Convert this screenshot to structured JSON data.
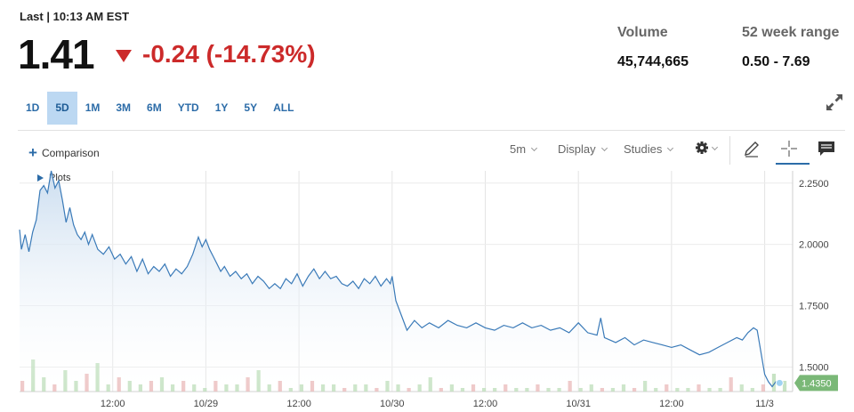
{
  "header": {
    "last_label": "Last | 10:13 AM EST",
    "price": "1.41",
    "change": "-0.24 (-14.73%)",
    "change_color": "#cc2a2a",
    "volume_label": "Volume",
    "volume_value": "45,744,665",
    "range_label": "52 week range",
    "range_value": "0.50 - 7.69"
  },
  "ranges": [
    "1D",
    "5D",
    "1M",
    "3M",
    "6M",
    "YTD",
    "1Y",
    "5Y",
    "ALL"
  ],
  "active_range": "5D",
  "toolbar": {
    "comparison_label": "Comparison",
    "plots_label": "Plots",
    "interval_label": "5m",
    "display_label": "Display",
    "studies_label": "Studies",
    "icons": [
      "gear-icon",
      "pencil-icon",
      "crosshair-icon",
      "comment-icon",
      "expand-icon"
    ]
  },
  "chart_data": {
    "type": "area",
    "ylim": [
      1.4,
      2.3
    ],
    "y_ticks": [
      "2.2500",
      "2.0000",
      "1.7500",
      "1.5000"
    ],
    "y_tick_values": [
      2.25,
      2.0,
      1.75,
      1.5
    ],
    "x_tick_labels": [
      "12:00",
      "10/29",
      "12:00",
      "10/30",
      "12:00",
      "10/31",
      "12:00",
      "11/3"
    ],
    "x_tick_positions": [
      0.5,
      1.0,
      1.5,
      2.0,
      2.5,
      3.0,
      3.5,
      4.0
    ],
    "last_price_tag": "1.4350",
    "line_color": "#3a7ab8",
    "fill_color": "#c9dcef",
    "tag_color": "#7ab877",
    "series": [
      {
        "x": [
          0.0,
          0.01,
          0.03,
          0.05,
          0.07,
          0.09,
          0.11,
          0.13,
          0.15,
          0.17,
          0.19,
          0.21,
          0.23,
          0.25,
          0.27,
          0.29,
          0.31,
          0.33,
          0.35,
          0.37,
          0.39,
          0.42,
          0.45,
          0.48,
          0.51,
          0.54,
          0.57,
          0.6,
          0.63,
          0.66,
          0.69,
          0.72,
          0.75,
          0.78,
          0.81,
          0.84,
          0.87,
          0.9,
          0.93,
          0.96,
          0.98,
          1.0,
          1.02,
          1.04,
          1.06,
          1.08,
          1.1,
          1.13,
          1.16,
          1.19,
          1.22,
          1.25,
          1.28,
          1.31,
          1.34,
          1.37,
          1.4,
          1.43,
          1.46,
          1.49,
          1.52,
          1.55,
          1.58,
          1.61,
          1.64,
          1.67,
          1.7,
          1.73,
          1.76,
          1.79,
          1.82,
          1.85,
          1.88,
          1.91,
          1.94,
          1.97,
          1.99,
          2.0,
          2.02,
          2.05,
          2.08,
          2.12,
          2.16,
          2.2,
          2.25,
          2.3,
          2.35,
          2.4,
          2.45,
          2.5,
          2.55,
          2.6,
          2.65,
          2.7,
          2.75,
          2.8,
          2.85,
          2.9,
          2.95,
          3.0,
          3.05,
          3.1,
          3.12,
          3.14,
          3.2,
          3.25,
          3.3,
          3.35,
          3.4,
          3.45,
          3.5,
          3.55,
          3.6,
          3.65,
          3.7,
          3.75,
          3.8,
          3.85,
          3.88,
          3.91,
          3.94,
          3.96,
          3.98,
          4.0,
          4.02,
          4.04,
          4.06,
          4.08
        ],
        "y": [
          2.06,
          1.98,
          2.04,
          1.97,
          2.05,
          2.1,
          2.22,
          2.24,
          2.21,
          2.3,
          2.23,
          2.26,
          2.18,
          2.09,
          2.15,
          2.08,
          2.04,
          2.02,
          2.05,
          2.0,
          2.04,
          1.98,
          1.96,
          1.99,
          1.94,
          1.96,
          1.92,
          1.95,
          1.89,
          1.94,
          1.88,
          1.91,
          1.89,
          1.92,
          1.87,
          1.9,
          1.88,
          1.91,
          1.96,
          2.03,
          1.99,
          2.02,
          1.98,
          1.95,
          1.92,
          1.89,
          1.91,
          1.87,
          1.89,
          1.86,
          1.88,
          1.84,
          1.87,
          1.85,
          1.82,
          1.84,
          1.82,
          1.86,
          1.84,
          1.88,
          1.83,
          1.87,
          1.9,
          1.86,
          1.89,
          1.86,
          1.87,
          1.84,
          1.83,
          1.85,
          1.82,
          1.86,
          1.84,
          1.87,
          1.83,
          1.86,
          1.84,
          1.87,
          1.77,
          1.71,
          1.65,
          1.69,
          1.66,
          1.68,
          1.66,
          1.69,
          1.67,
          1.66,
          1.68,
          1.66,
          1.65,
          1.67,
          1.66,
          1.68,
          1.66,
          1.67,
          1.65,
          1.66,
          1.64,
          1.68,
          1.64,
          1.63,
          1.7,
          1.62,
          1.6,
          1.62,
          1.59,
          1.61,
          1.6,
          1.59,
          1.58,
          1.59,
          1.57,
          1.55,
          1.56,
          1.58,
          1.6,
          1.62,
          1.61,
          1.64,
          1.66,
          1.65,
          1.56,
          1.47,
          1.44,
          1.42,
          1.44,
          1.435
        ]
      }
    ],
    "volume": [
      0.3,
      0.9,
      0.4,
      0.2,
      0.6,
      0.3,
      0.5,
      0.8,
      0.2,
      0.4,
      0.3,
      0.2,
      0.3,
      0.4,
      0.2,
      0.3,
      0.2,
      0.1,
      0.3,
      0.2,
      0.2,
      0.4,
      0.6,
      0.2,
      0.3,
      0.1,
      0.2,
      0.3,
      0.2,
      0.2,
      0.1,
      0.2,
      0.2,
      0.1,
      0.3,
      0.2,
      0.1,
      0.2,
      0.4,
      0.1,
      0.2,
      0.1,
      0.2,
      0.1,
      0.1,
      0.2,
      0.1,
      0.1,
      0.2,
      0.1,
      0.1,
      0.3,
      0.1,
      0.2,
      0.1,
      0.1,
      0.2,
      0.1,
      0.3,
      0.1,
      0.2,
      0.1,
      0.1,
      0.2,
      0.1,
      0.1,
      0.4,
      0.2,
      0.1,
      0.2,
      0.5,
      0.3
    ]
  }
}
